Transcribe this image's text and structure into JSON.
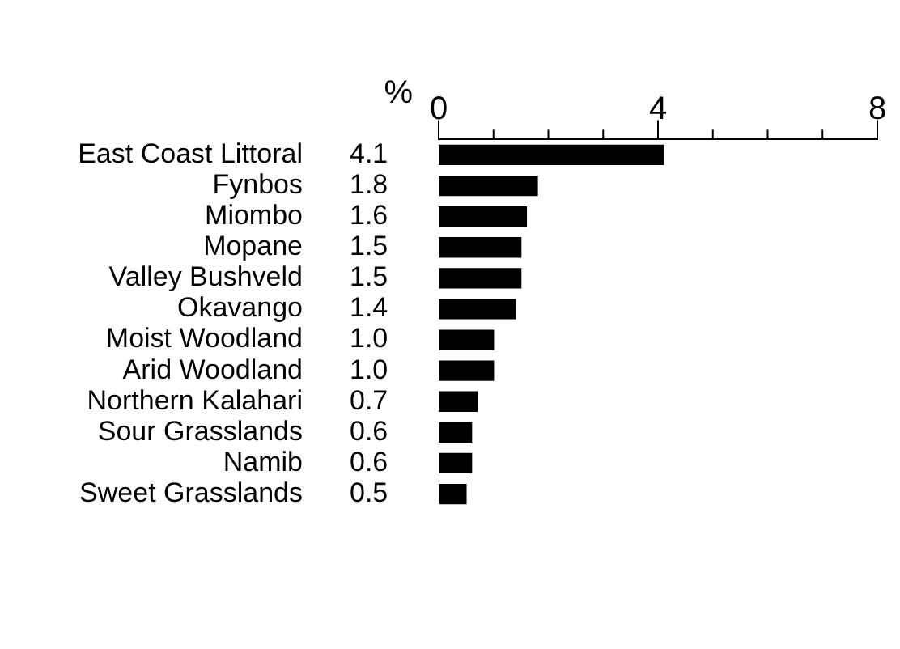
{
  "chart_data": {
    "type": "bar",
    "orientation": "horizontal",
    "xlabel": "%",
    "categories": [
      "East Coast Littoral",
      "Fynbos",
      "Miombo",
      "Mopane",
      "Valley Bushveld",
      "Okavango",
      "Moist Woodland",
      "Arid Woodland",
      "Northern Kalahari",
      "Sour Grasslands",
      "Namib",
      "Sweet Grasslands"
    ],
    "values": [
      4.1,
      1.8,
      1.6,
      1.5,
      1.5,
      1.4,
      1.0,
      1.0,
      0.7,
      0.6,
      0.6,
      0.5
    ],
    "color": "#000000",
    "xlim": [
      0,
      8
    ],
    "xticks": [
      0,
      {
        "value": 1,
        "label": null
      },
      {
        "value": 2,
        "label": null
      },
      {
        "value": 3,
        "label": null
      },
      4,
      {
        "value": 5,
        "label": null
      },
      {
        "value": 6,
        "label": null
      },
      {
        "value": 7,
        "label": null
      },
      8
    ],
    "value_labels": [
      "4.1",
      "1.8",
      "1.6",
      "1.5",
      "1.5",
      "1.4",
      "1.0",
      "1.0",
      "0.7",
      "0.6",
      "0.6",
      "0.5"
    ],
    "grid": false,
    "legend": false
  }
}
